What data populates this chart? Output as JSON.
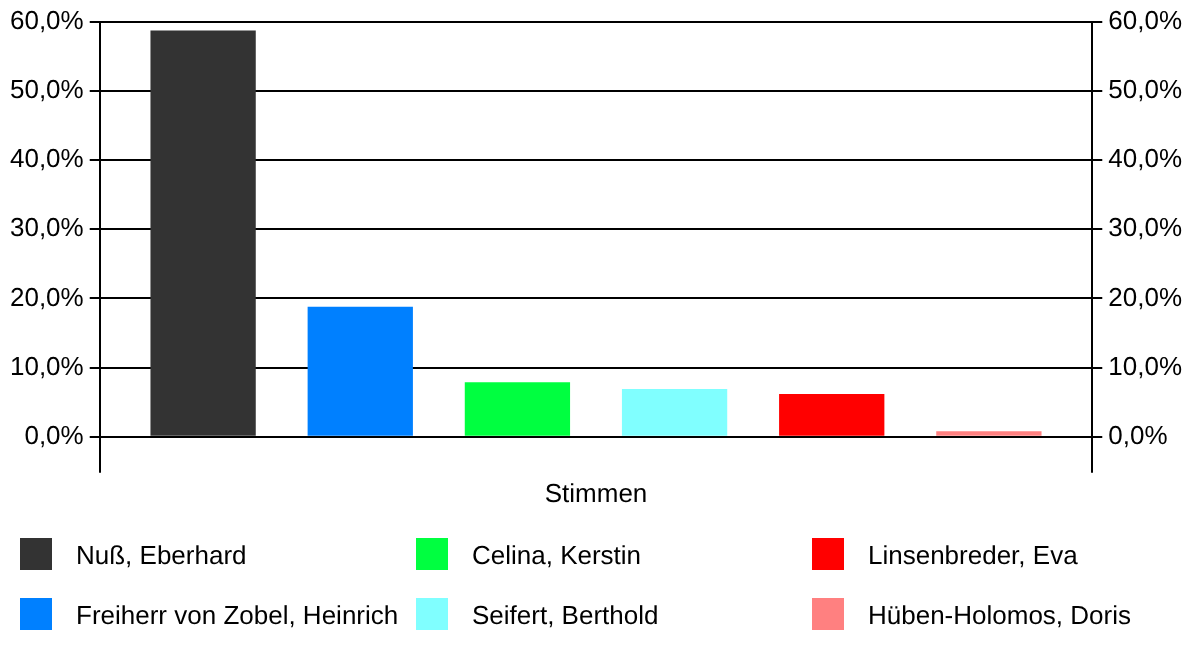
{
  "chart_data": {
    "type": "bar",
    "categories": [
      "Stimmen"
    ],
    "series": [
      {
        "name": "Nuß, Eberhard",
        "color": "#333333",
        "values": [
          58.7
        ]
      },
      {
        "name": "Freiherr von Zobel, Heinrich",
        "color": "#0080ff",
        "values": [
          18.8
        ]
      },
      {
        "name": "Celina, Kerstin",
        "color": "#00ff40",
        "values": [
          7.9
        ]
      },
      {
        "name": "Seifert, Berthold",
        "color": "#80ffff",
        "values": [
          6.9
        ]
      },
      {
        "name": "Linsenbreder, Eva",
        "color": "#ff0000",
        "values": [
          6.2
        ]
      },
      {
        "name": "Hüben-Holomos, Doris",
        "color": "#ff8080",
        "values": [
          0.8
        ]
      }
    ],
    "ylim": [
      0,
      60
    ],
    "yticks": [
      {
        "value": 0,
        "label": "0,0%"
      },
      {
        "value": 10,
        "label": "10,0%"
      },
      {
        "value": 20,
        "label": "20,0%"
      },
      {
        "value": 30,
        "label": "30,0%"
      },
      {
        "value": 40,
        "label": "40,0%"
      },
      {
        "value": 50,
        "label": "50,0%"
      },
      {
        "value": 60,
        "label": "60,0%"
      }
    ],
    "grid": "y",
    "legend": "bottom"
  }
}
